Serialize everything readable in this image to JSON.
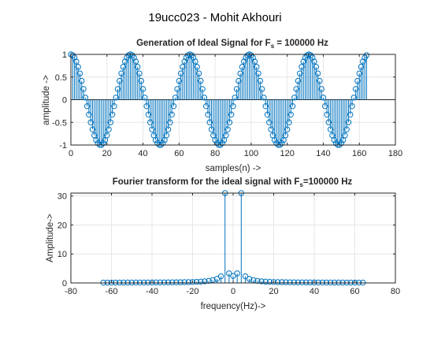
{
  "figure_title": "19ucc023 - Mohit Akhouri",
  "chart_data": [
    {
      "type": "stem",
      "title_parts": [
        "Generation of Ideal Signal for F",
        "s",
        " = 100000 Hz"
      ],
      "xlabel": "samples(n) ->",
      "ylabel": "amplitude ->",
      "xlim": [
        0,
        180
      ],
      "ylim": [
        -1,
        1
      ],
      "xticks": [
        0,
        20,
        40,
        60,
        80,
        100,
        120,
        140,
        160,
        180
      ],
      "yticks": [
        -1,
        -0.5,
        0,
        0.5,
        1
      ],
      "ytick_labels": [
        "-1",
        "-0.5",
        "0",
        "0.5",
        "1"
      ],
      "grid": true,
      "color": "#0072bd",
      "n_samples": 165,
      "signal": "cos(2*pi*n/33)",
      "x_start": 1,
      "x_end": 165
    },
    {
      "type": "stem",
      "title_parts": [
        "Fourier transform for the ideal signal with F",
        "s",
        "=100000 Hz"
      ],
      "xlabel": "frequency(Hz)->",
      "ylabel": "Amplitude->",
      "xlim": [
        -80,
        80
      ],
      "ylim": [
        0,
        31
      ],
      "xticks": [
        -80,
        -60,
        -40,
        -20,
        0,
        20,
        40,
        60,
        80
      ],
      "yticks": [
        0,
        10,
        20,
        30
      ],
      "grid": true,
      "color": "#0072bd",
      "x": [
        -64,
        -62,
        -60,
        -58,
        -56,
        -54,
        -52,
        -50,
        -48,
        -46,
        -44,
        -42,
        -40,
        -38,
        -36,
        -34,
        -32,
        -30,
        -28,
        -26,
        -24,
        -22,
        -20,
        -18,
        -16,
        -14,
        -12,
        -10,
        -8,
        -6,
        -4,
        -2,
        0,
        2,
        4,
        6,
        8,
        10,
        12,
        14,
        16,
        18,
        20,
        22,
        24,
        26,
        28,
        30,
        32,
        34,
        36,
        38,
        40,
        42,
        44,
        46,
        48,
        50,
        52,
        54,
        56,
        58,
        60,
        62,
        64
      ],
      "y": [
        0.12,
        0.13,
        0.13,
        0.13,
        0.13,
        0.14,
        0.14,
        0.14,
        0.15,
        0.15,
        0.16,
        0.16,
        0.17,
        0.18,
        0.18,
        0.19,
        0.2,
        0.21,
        0.23,
        0.24,
        0.27,
        0.3,
        0.33,
        0.38,
        0.45,
        0.55,
        0.72,
        0.95,
        1.4,
        2.3,
        31,
        3.3,
        2.4,
        3.3,
        31,
        2.3,
        1.4,
        0.95,
        0.72,
        0.55,
        0.45,
        0.38,
        0.33,
        0.3,
        0.27,
        0.24,
        0.23,
        0.21,
        0.2,
        0.19,
        0.18,
        0.18,
        0.17,
        0.16,
        0.16,
        0.15,
        0.15,
        0.14,
        0.14,
        0.14,
        0.13,
        0.13,
        0.13,
        0.13,
        0.12
      ]
    }
  ]
}
